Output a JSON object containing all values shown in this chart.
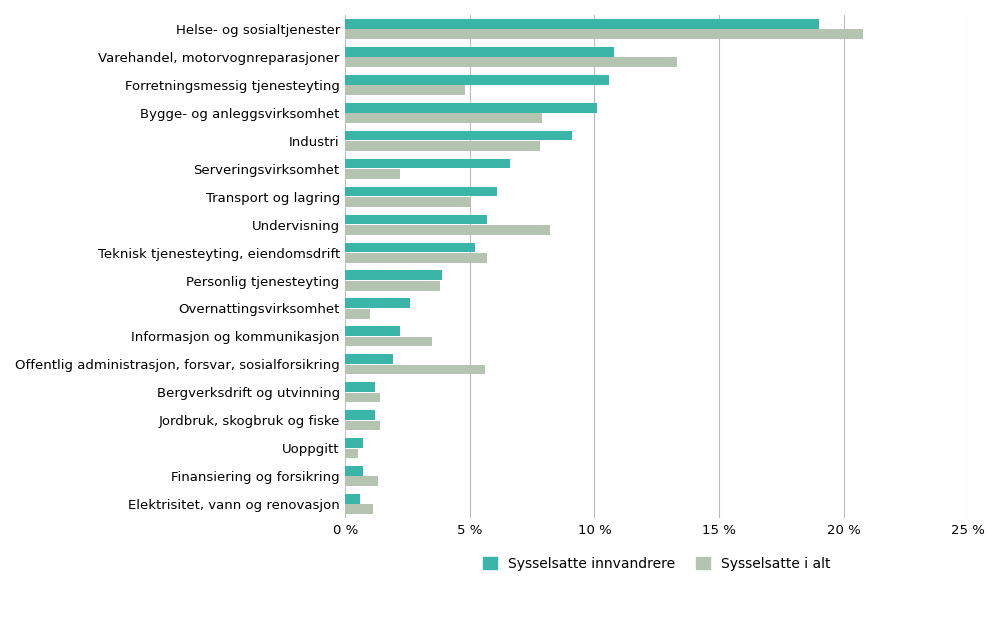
{
  "categories": [
    "Helse- og sosialtjenester",
    "Varehandel, motorvognreparasjoner",
    "Forretningsmessig tjenesteyting",
    "Bygge- og anleggsvirksomhet",
    "Industri",
    "Serveringsvirksomhet",
    "Transport og lagring",
    "Undervisning",
    "Teknisk tjenesteyting, eiendomsdrift",
    "Personlig tjenesteyting",
    "Overnattingsvirksomhet",
    "Informasjon og kommunikasjon",
    "Offentlig administrasjon, forsvar, sosialforsikring",
    "Bergverksdrift og utvinning",
    "Jordbruk, skogbruk og fiske",
    "Uoppgitt",
    "Finansiering og forsikring",
    "Elektrisitet, vann og renovasjon"
  ],
  "innvandrere": [
    19.0,
    10.8,
    10.6,
    10.1,
    9.1,
    6.6,
    6.1,
    5.7,
    5.2,
    3.9,
    2.6,
    2.2,
    1.9,
    1.2,
    1.2,
    0.7,
    0.7,
    0.6
  ],
  "i_alt": [
    20.8,
    13.3,
    4.8,
    7.9,
    7.8,
    2.2,
    5.0,
    8.2,
    5.7,
    3.8,
    1.0,
    3.5,
    5.6,
    1.4,
    1.4,
    0.5,
    1.3,
    1.1
  ],
  "color_innvandrere": "#3ab5a8",
  "color_i_alt": "#b5c4b1",
  "legend_innvandrere": "Sysselsatte innvandrere",
  "legend_i_alt": "Sysselsatte i alt",
  "xlim": [
    0,
    25
  ],
  "xticks": [
    0,
    5,
    10,
    15,
    20,
    25
  ],
  "xtick_labels": [
    "0 %",
    "5 %",
    "10 %",
    "15 %",
    "20 %",
    "25 %"
  ],
  "background_color": "#ffffff",
  "bar_height": 0.35,
  "bar_gap": 0.02,
  "figsize": [
    10.0,
    6.34
  ],
  "dpi": 100
}
